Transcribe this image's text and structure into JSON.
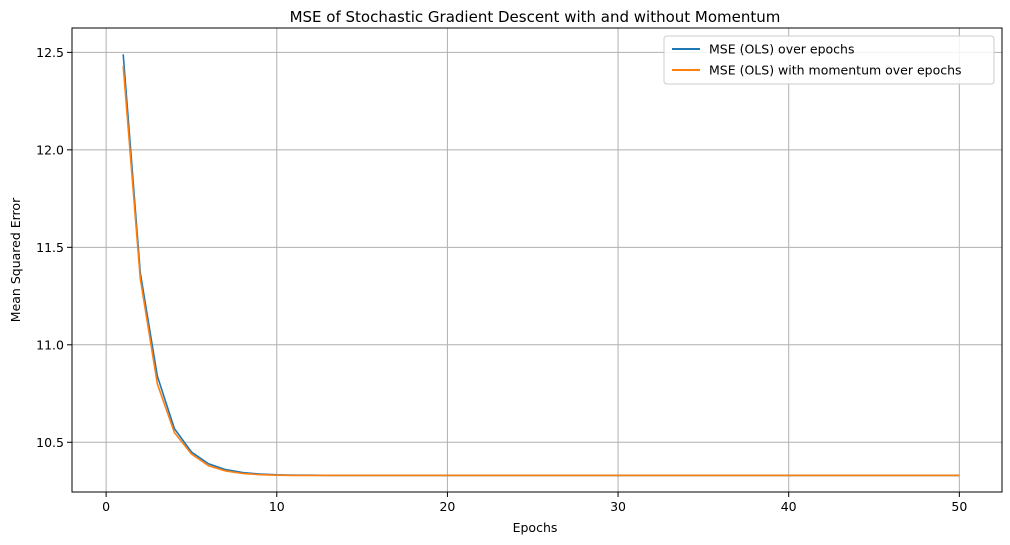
{
  "chart_data": {
    "type": "line",
    "title": "MSE of Stochastic Gradient Descent with and without Momentum",
    "xlabel": "Epochs",
    "ylabel": "Mean Squared Error",
    "xlim": [
      -2.0,
      52.5
    ],
    "ylim": [
      10.245,
      12.625
    ],
    "xticks": [
      0,
      10,
      20,
      30,
      40,
      50
    ],
    "yticks": [
      10.5,
      11.0,
      11.5,
      12.0,
      12.5
    ],
    "xtick_labels": [
      "0",
      "10",
      "20",
      "30",
      "40",
      "50"
    ],
    "ytick_labels": [
      "10.5",
      "11.0",
      "11.5",
      "12.0",
      "12.5"
    ],
    "grid": true,
    "legend": "top-right",
    "x": [
      1,
      2,
      3,
      4,
      5,
      6,
      7,
      8,
      9,
      10,
      11,
      12,
      13,
      14,
      15,
      16,
      17,
      18,
      19,
      20,
      21,
      22,
      23,
      24,
      25,
      26,
      27,
      28,
      29,
      30,
      31,
      32,
      33,
      34,
      35,
      36,
      37,
      38,
      39,
      40,
      41,
      42,
      43,
      44,
      45,
      46,
      47,
      48,
      49,
      50
    ],
    "series": [
      {
        "name": "MSE (OLS) over epochs",
        "color": "#1f77b4",
        "values": [
          12.49,
          11.37,
          10.84,
          10.57,
          10.45,
          10.39,
          10.36,
          10.345,
          10.337,
          10.333,
          10.331,
          10.331,
          10.33,
          10.33,
          10.33,
          10.33,
          10.33,
          10.33,
          10.33,
          10.33,
          10.33,
          10.33,
          10.33,
          10.33,
          10.33,
          10.33,
          10.33,
          10.33,
          10.33,
          10.33,
          10.33,
          10.33,
          10.33,
          10.33,
          10.33,
          10.33,
          10.33,
          10.33,
          10.33,
          10.33,
          10.33,
          10.33,
          10.33,
          10.33,
          10.33,
          10.33,
          10.33,
          10.33,
          10.33,
          10.33
        ]
      },
      {
        "name": "MSE (OLS) with momentum over epochs",
        "color": "#ff7f0e",
        "values": [
          12.43,
          11.34,
          10.8,
          10.55,
          10.44,
          10.38,
          10.353,
          10.34,
          10.334,
          10.331,
          10.33,
          10.33,
          10.33,
          10.33,
          10.33,
          10.33,
          10.33,
          10.33,
          10.33,
          10.33,
          10.33,
          10.33,
          10.33,
          10.33,
          10.33,
          10.33,
          10.33,
          10.33,
          10.33,
          10.33,
          10.33,
          10.33,
          10.33,
          10.33,
          10.33,
          10.33,
          10.33,
          10.33,
          10.33,
          10.33,
          10.33,
          10.33,
          10.33,
          10.33,
          10.33,
          10.33,
          10.33,
          10.33,
          10.33,
          10.33
        ]
      }
    ]
  }
}
